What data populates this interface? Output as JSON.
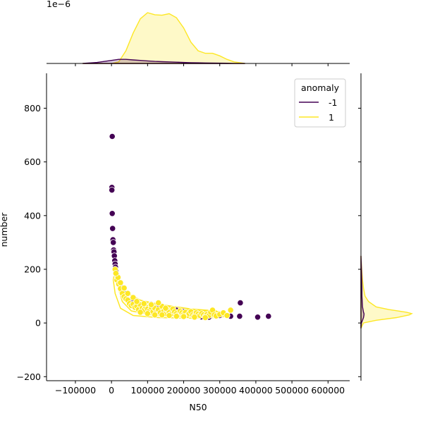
{
  "chart_data": {
    "type": "scatter",
    "subtype": "jointplot-with-kde-marginals",
    "xlabel": "N50",
    "ylabel": "number",
    "xlim": [
      -180000,
      660000
    ],
    "ylim": [
      -215,
      930
    ],
    "x_ticks": [
      "−100000",
      "0",
      "100000",
      "200000",
      "300000",
      "400000",
      "500000",
      "600000"
    ],
    "x_tick_values": [
      -100000,
      0,
      100000,
      200000,
      300000,
      400000,
      500000,
      600000
    ],
    "y_ticks": [
      "−200",
      "0",
      "200",
      "400",
      "600",
      "800"
    ],
    "y_tick_values": [
      -200,
      0,
      200,
      400,
      600,
      800
    ],
    "top_marginal_offset_label": "1e−6",
    "grid": false,
    "legend": {
      "title": "anomaly",
      "placement": "top-right",
      "entries": [
        {
          "label": "-1",
          "color": "#440154"
        },
        {
          "label": "1",
          "color": "#fde725"
        }
      ]
    },
    "colors": {
      "anomaly_neg": "#440154",
      "anomaly_pos": "#fde725"
    },
    "series": [
      {
        "name": "-1",
        "points": [
          [
            2000,
            695
          ],
          [
            1000,
            505
          ],
          [
            1000,
            495
          ],
          [
            2000,
            408
          ],
          [
            3000,
            352
          ],
          [
            4000,
            310
          ],
          [
            5000,
            300
          ],
          [
            6000,
            272
          ],
          [
            7000,
            265
          ],
          [
            8000,
            250
          ],
          [
            9000,
            232
          ],
          [
            10000,
            220
          ],
          [
            11000,
            208
          ],
          [
            12000,
            195
          ],
          [
            14000,
            180
          ],
          [
            16000,
            165
          ],
          [
            18000,
            155
          ],
          [
            20000,
            148
          ],
          [
            25000,
            135
          ],
          [
            30000,
            125
          ],
          [
            35000,
            110
          ],
          [
            40000,
            95
          ],
          [
            50000,
            85
          ],
          [
            60000,
            75
          ],
          [
            75000,
            65
          ],
          [
            85000,
            58
          ],
          [
            100000,
            55
          ],
          [
            110000,
            70
          ],
          [
            130000,
            62
          ],
          [
            150000,
            45
          ],
          [
            180000,
            48
          ],
          [
            200000,
            42
          ],
          [
            220000,
            35
          ],
          [
            240000,
            32
          ],
          [
            250000,
            23
          ],
          [
            270000,
            22
          ],
          [
            290000,
            25
          ],
          [
            300000,
            28
          ],
          [
            320000,
            28
          ],
          [
            330000,
            25
          ],
          [
            355000,
            25
          ],
          [
            357000,
            75
          ],
          [
            405000,
            22
          ],
          [
            435000,
            25
          ]
        ]
      },
      {
        "name": "1",
        "points": [
          [
            10000,
            200
          ],
          [
            15000,
            160
          ],
          [
            20000,
            145
          ],
          [
            25000,
            128
          ],
          [
            30000,
            110
          ],
          [
            35000,
            98
          ],
          [
            40000,
            90
          ],
          [
            45000,
            85
          ],
          [
            50000,
            72
          ],
          [
            55000,
            65
          ],
          [
            60000,
            70
          ],
          [
            65000,
            58
          ],
          [
            70000,
            62
          ],
          [
            75000,
            50
          ],
          [
            80000,
            68
          ],
          [
            85000,
            55
          ],
          [
            90000,
            48
          ],
          [
            95000,
            60
          ],
          [
            100000,
            52
          ],
          [
            105000,
            45
          ],
          [
            110000,
            58
          ],
          [
            115000,
            42
          ],
          [
            120000,
            55
          ],
          [
            125000,
            40
          ],
          [
            130000,
            50
          ],
          [
            135000,
            38
          ],
          [
            140000,
            62
          ],
          [
            145000,
            45
          ],
          [
            150000,
            35
          ],
          [
            155000,
            48
          ],
          [
            160000,
            40
          ],
          [
            165000,
            33
          ],
          [
            170000,
            52
          ],
          [
            175000,
            42
          ],
          [
            180000,
            35
          ],
          [
            185000,
            30
          ],
          [
            190000,
            45
          ],
          [
            195000,
            38
          ],
          [
            200000,
            32
          ],
          [
            205000,
            40
          ],
          [
            210000,
            28
          ],
          [
            215000,
            35
          ],
          [
            220000,
            42
          ],
          [
            225000,
            30
          ],
          [
            230000,
            27
          ],
          [
            235000,
            38
          ],
          [
            240000,
            33
          ],
          [
            245000,
            28
          ],
          [
            250000,
            35
          ],
          [
            255000,
            30
          ],
          [
            260000,
            25
          ],
          [
            265000,
            32
          ],
          [
            270000,
            28
          ],
          [
            275000,
            40
          ],
          [
            280000,
            48
          ],
          [
            285000,
            30
          ],
          [
            290000,
            26
          ],
          [
            300000,
            32
          ],
          [
            310000,
            38
          ],
          [
            320000,
            28
          ],
          [
            330000,
            48
          ],
          [
            60000,
            95
          ],
          [
            70000,
            80
          ],
          [
            90000,
            72
          ],
          [
            110000,
            68
          ],
          [
            130000,
            75
          ],
          [
            150000,
            55
          ],
          [
            120000,
            30
          ],
          [
            100000,
            35
          ],
          [
            80000,
            40
          ],
          [
            140000,
            30
          ],
          [
            160000,
            28
          ],
          [
            180000,
            25
          ],
          [
            200000,
            24
          ],
          [
            230000,
            22
          ],
          [
            260000,
            20
          ],
          [
            45000,
            110
          ],
          [
            35000,
            130
          ],
          [
            25000,
            150
          ],
          [
            18000,
            170
          ],
          [
            12000,
            185
          ]
        ]
      }
    ],
    "kde_x_marginal": {
      "x": [
        -80000,
        -40000,
        0,
        20000,
        40000,
        60000,
        80000,
        100000,
        120000,
        140000,
        160000,
        180000,
        200000,
        220000,
        240000,
        260000,
        280000,
        300000,
        320000,
        340000,
        370000
      ],
      "density_neg": [
        0.0,
        0.02,
        0.06,
        0.08,
        0.08,
        0.07,
        0.06,
        0.05,
        0.04,
        0.035,
        0.03,
        0.025,
        0.02,
        0.015,
        0.012,
        0.01,
        0.008,
        0.006,
        0.004,
        0.002,
        0.0
      ],
      "density_pos": [
        0.0,
        0.0,
        0.0,
        0.03,
        0.25,
        0.6,
        0.88,
        1.0,
        0.96,
        0.95,
        0.98,
        0.9,
        0.7,
        0.42,
        0.25,
        0.2,
        0.2,
        0.15,
        0.08,
        0.03,
        0.0
      ]
    },
    "kde_y_marginal": {
      "y": [
        -20,
        0,
        10,
        20,
        30,
        35,
        40,
        50,
        60,
        80,
        100,
        130,
        160,
        200,
        250
      ],
      "density_pos": [
        0.0,
        0.05,
        0.3,
        0.7,
        0.95,
        1.0,
        0.9,
        0.55,
        0.3,
        0.15,
        0.08,
        0.05,
        0.03,
        0.015,
        0.0
      ],
      "density_neg": [
        0.0,
        0.01,
        0.03,
        0.05,
        0.06,
        0.06,
        0.05,
        0.04,
        0.03,
        0.025,
        0.02,
        0.02,
        0.015,
        0.01,
        0.0
      ]
    }
  }
}
